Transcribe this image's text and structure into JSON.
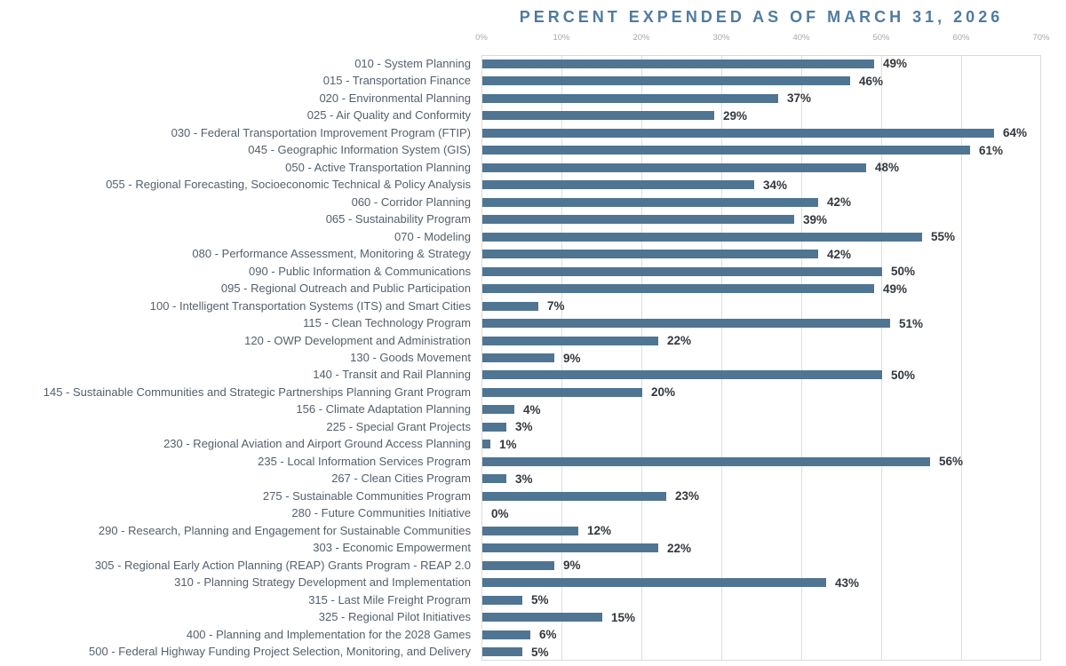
{
  "chart_data": {
    "type": "bar",
    "orientation": "horizontal",
    "title": "PERCENT EXPENDED AS OF MARCH 31, 2026",
    "categories": [
      "010 - System Planning",
      "015 - Transportation Finance",
      "020 - Environmental Planning",
      "025 - Air Quality and Conformity",
      "030 - Federal Transportation Improvement Program (FTIP)",
      "045 - Geographic Information System (GIS)",
      "050 - Active Transportation Planning",
      "055 - Regional Forecasting, Socioeconomic Technical & Policy Analysis",
      "060 - Corridor Planning",
      "065 - Sustainability Program",
      "070 - Modeling",
      "080 - Performance Assessment, Monitoring & Strategy",
      "090 - Public Information & Communications",
      "095 - Regional Outreach and Public Participation",
      "100 - Intelligent Transportation Systems (ITS) and Smart Cities",
      "115 - Clean Technology Program",
      "120 - OWP Development and Administration",
      "130 - Goods Movement",
      "140 - Transit and Rail Planning",
      "145 - Sustainable Communities and Strategic Partnerships Planning Grant Program",
      "156 - Climate Adaptation Planning",
      "225 - Special Grant Projects",
      "230 - Regional Aviation and Airport Ground Access Planning",
      "235 - Local Information Services Program",
      "267 - Clean Cities Program",
      "275 - Sustainable Communities Program",
      "280 - Future Communities Initiative",
      "290 - Research, Planning and Engagement for Sustainable Communities",
      "303 - Economic Empowerment",
      "305 - Regional Early Action Planning (REAP) Grants Program - REAP 2.0",
      "310 - Planning Strategy Development and Implementation",
      "315 - Last Mile Freight Program",
      "325 - Regional Pilot Initiatives",
      "400 - Planning and Implementation for the 2028 Games",
      "500 - Federal Highway Funding Project Selection, Monitoring, and Delivery"
    ],
    "values": [
      49,
      46,
      37,
      29,
      64,
      61,
      48,
      34,
      42,
      39,
      55,
      42,
      50,
      49,
      7,
      51,
      22,
      9,
      50,
      20,
      4,
      3,
      1,
      56,
      3,
      23,
      0,
      12,
      22,
      9,
      43,
      5,
      15,
      6,
      5
    ],
    "value_suffix": "%",
    "x_ticks": [
      "0%",
      "10%",
      "20%",
      "30%",
      "40%",
      "50%",
      "60%",
      "70%"
    ],
    "xlim": [
      0,
      70
    ],
    "xlabel": "",
    "ylabel": "",
    "grid": "vertical",
    "legend": "none",
    "colors": {
      "bar": "#4f7592",
      "title": "#4e7ba3",
      "tick_label": "#a4a9ae",
      "category_label": "#54606c",
      "value_label": "#33383e",
      "gridline": "#dcdfe2",
      "plot_border": "#d8dbde",
      "background": "#ffffff"
    }
  }
}
